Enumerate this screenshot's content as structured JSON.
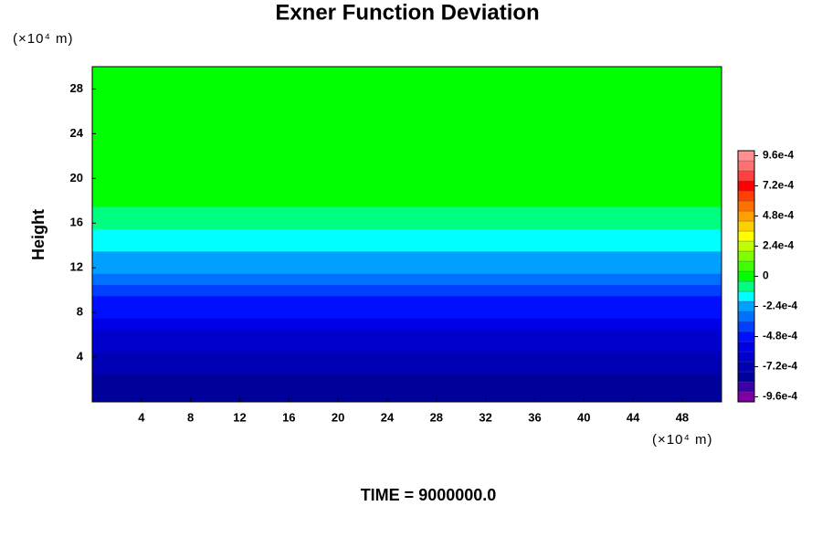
{
  "chart_data": {
    "type": "contour",
    "title": "Exner Function Deviation",
    "y_label": "Height",
    "x_unit": "(×10⁴ m)",
    "y_unit": "(×10⁴ m)",
    "annotation": "TIME = 9000000.0",
    "xlim": [
      0,
      51.2
    ],
    "ylim": [
      0,
      30
    ],
    "xticks": [
      4,
      8,
      12,
      16,
      20,
      24,
      28,
      32,
      36,
      40,
      44,
      48
    ],
    "yticks": [
      4,
      8,
      12,
      16,
      20,
      24,
      28
    ],
    "y": [
      0,
      1,
      2,
      3,
      4,
      5,
      6,
      7,
      8,
      9,
      10,
      11,
      12,
      13,
      14,
      15,
      16,
      17,
      18,
      19,
      20,
      21,
      22,
      23,
      24,
      25,
      26,
      27,
      28,
      29,
      30
    ],
    "values": [
      -0.00079,
      -0.00078,
      -0.00076,
      -0.00073,
      -0.0007,
      -0.00066,
      -0.00062,
      -0.00057,
      -0.00052,
      -0.00046,
      -0.0004,
      -0.00034,
      -0.00028,
      -0.00022,
      -0.00017,
      -0.00013,
      -9e-05,
      -6e-05,
      -4e-05,
      -2e-05,
      0,
      0,
      0,
      0,
      0,
      0,
      0,
      0,
      0,
      0,
      0
    ],
    "clim": [
      -0.001,
      0.001
    ],
    "colors": [
      "#7f00a0",
      "#3c00a8",
      "#00009a",
      "#0000b4",
      "#0000cd",
      "#0000e6",
      "#0010ff",
      "#0040ff",
      "#0070ff",
      "#00a0ff",
      "#00ffff",
      "#00ff80",
      "#00ff00",
      "#40ff00",
      "#80ff00",
      "#c0ff00",
      "#ffff00",
      "#ffd000",
      "#ffa000",
      "#ff7000",
      "#ff4000",
      "#ff0000",
      "#ff4040",
      "#ff7070",
      "#ff9090"
    ],
    "cticks": [
      {
        "value": 0.00096,
        "label": "9.6e-4"
      },
      {
        "value": 0.00072,
        "label": "7.2e-4"
      },
      {
        "value": 0.00048,
        "label": "4.8e-4"
      },
      {
        "value": 0.00024,
        "label": "2.4e-4"
      },
      0,
      {
        "value": -0.00024,
        "label": "-2.4e-4"
      },
      {
        "value": -0.00048,
        "label": "-4.8e-4"
      },
      {
        "value": -0.00072,
        "label": "-7.2e-4"
      },
      {
        "value": -0.00096,
        "label": "-9.6e-4"
      }
    ]
  }
}
